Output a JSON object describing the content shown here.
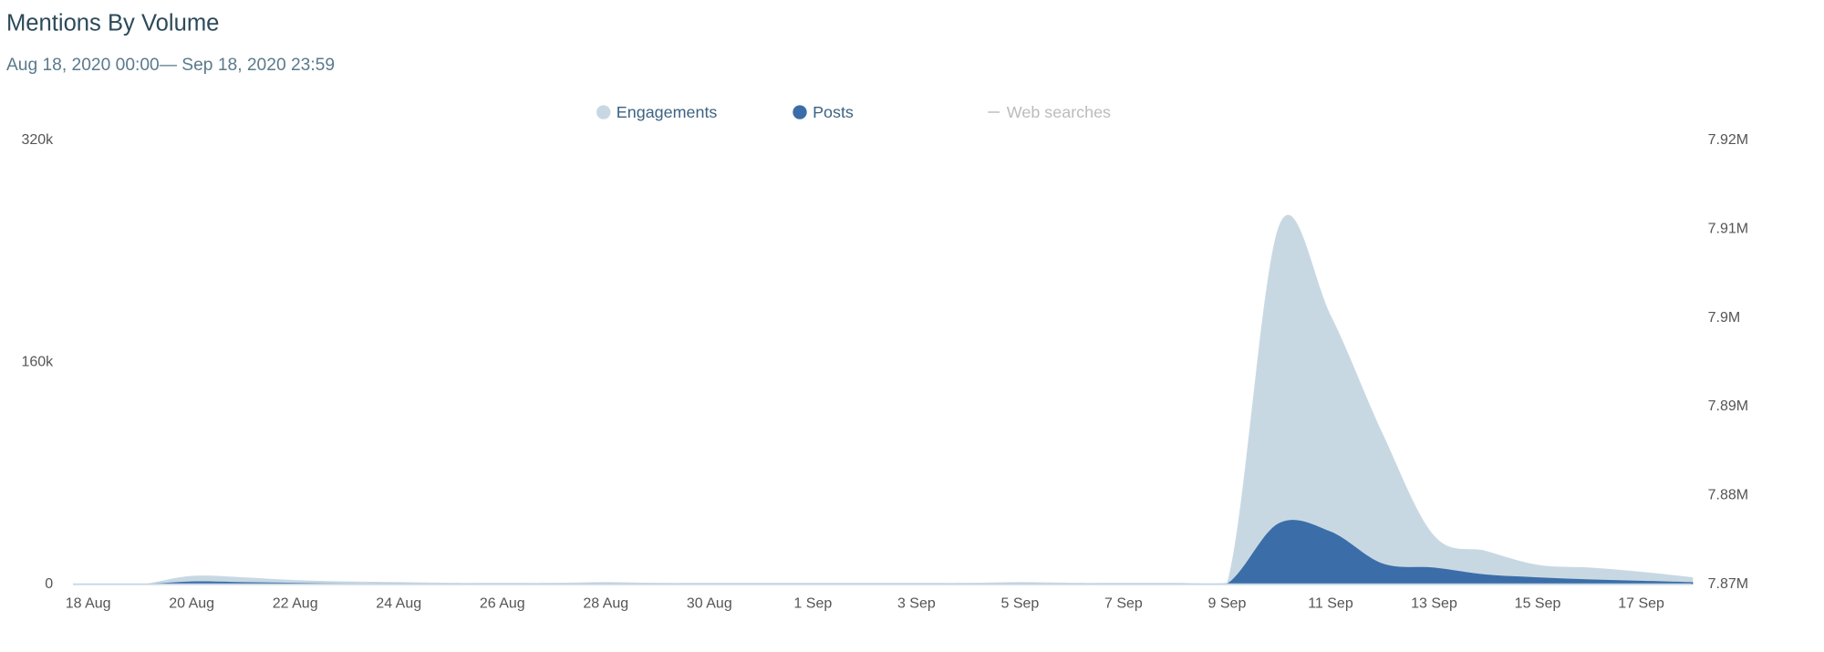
{
  "chart_data": {
    "type": "area",
    "title": "Mentions By Volume",
    "subtitle": "Aug 18, 2020 00:00— Sep 18, 2020 23:59",
    "categories": [
      "18 Aug",
      null,
      "20 Aug",
      null,
      "22 Aug",
      null,
      "24 Aug",
      null,
      "26 Aug",
      null,
      "28 Aug",
      null,
      "30 Aug",
      null,
      "1 Sep",
      null,
      "3 Sep",
      null,
      "5 Sep",
      null,
      "7 Sep",
      null,
      "9 Sep",
      null,
      "11 Sep",
      null,
      "13 Sep",
      null,
      "15 Sep",
      null,
      "17 Sep",
      null
    ],
    "series": [
      {
        "name": "Engagements",
        "color": "#c8d8e3",
        "values": [
          0,
          0,
          6000,
          5000,
          3000,
          2000,
          1500,
          1000,
          1000,
          1000,
          1500,
          1000,
          1000,
          1000,
          1000,
          1000,
          1000,
          1000,
          1500,
          1000,
          1000,
          1000,
          1000,
          258000,
          194000,
          109000,
          35000,
          24000,
          14000,
          12000,
          9000,
          5000
        ]
      },
      {
        "name": "Posts",
        "color": "#3b6ea8",
        "values": [
          0,
          0,
          2000,
          1500,
          1000,
          500,
          500,
          300,
          300,
          300,
          500,
          300,
          300,
          300,
          300,
          300,
          300,
          300,
          500,
          300,
          300,
          300,
          500,
          44000,
          38000,
          15000,
          12000,
          7000,
          5000,
          3500,
          2500,
          1500
        ]
      },
      {
        "name": "Web searches",
        "color": "#cccccc",
        "axis": "y2",
        "visible": false
      }
    ],
    "ylim": [
      0,
      320000
    ],
    "yticks": [
      0,
      {
        "value": 160000,
        "label": "160k"
      },
      {
        "value": 320000,
        "label": "320k"
      }
    ],
    "y2lim": [
      7870000,
      7920000
    ],
    "y2ticks": [
      {
        "value": 7870000,
        "label": "7.87M"
      },
      {
        "value": 7880000,
        "label": "7.88M"
      },
      {
        "value": 7890000,
        "label": "7.89M"
      },
      {
        "value": 7900000,
        "label": "7.9M"
      },
      {
        "value": 7910000,
        "label": "7.91M"
      },
      {
        "value": 7920000,
        "label": "7.92M"
      }
    ]
  }
}
